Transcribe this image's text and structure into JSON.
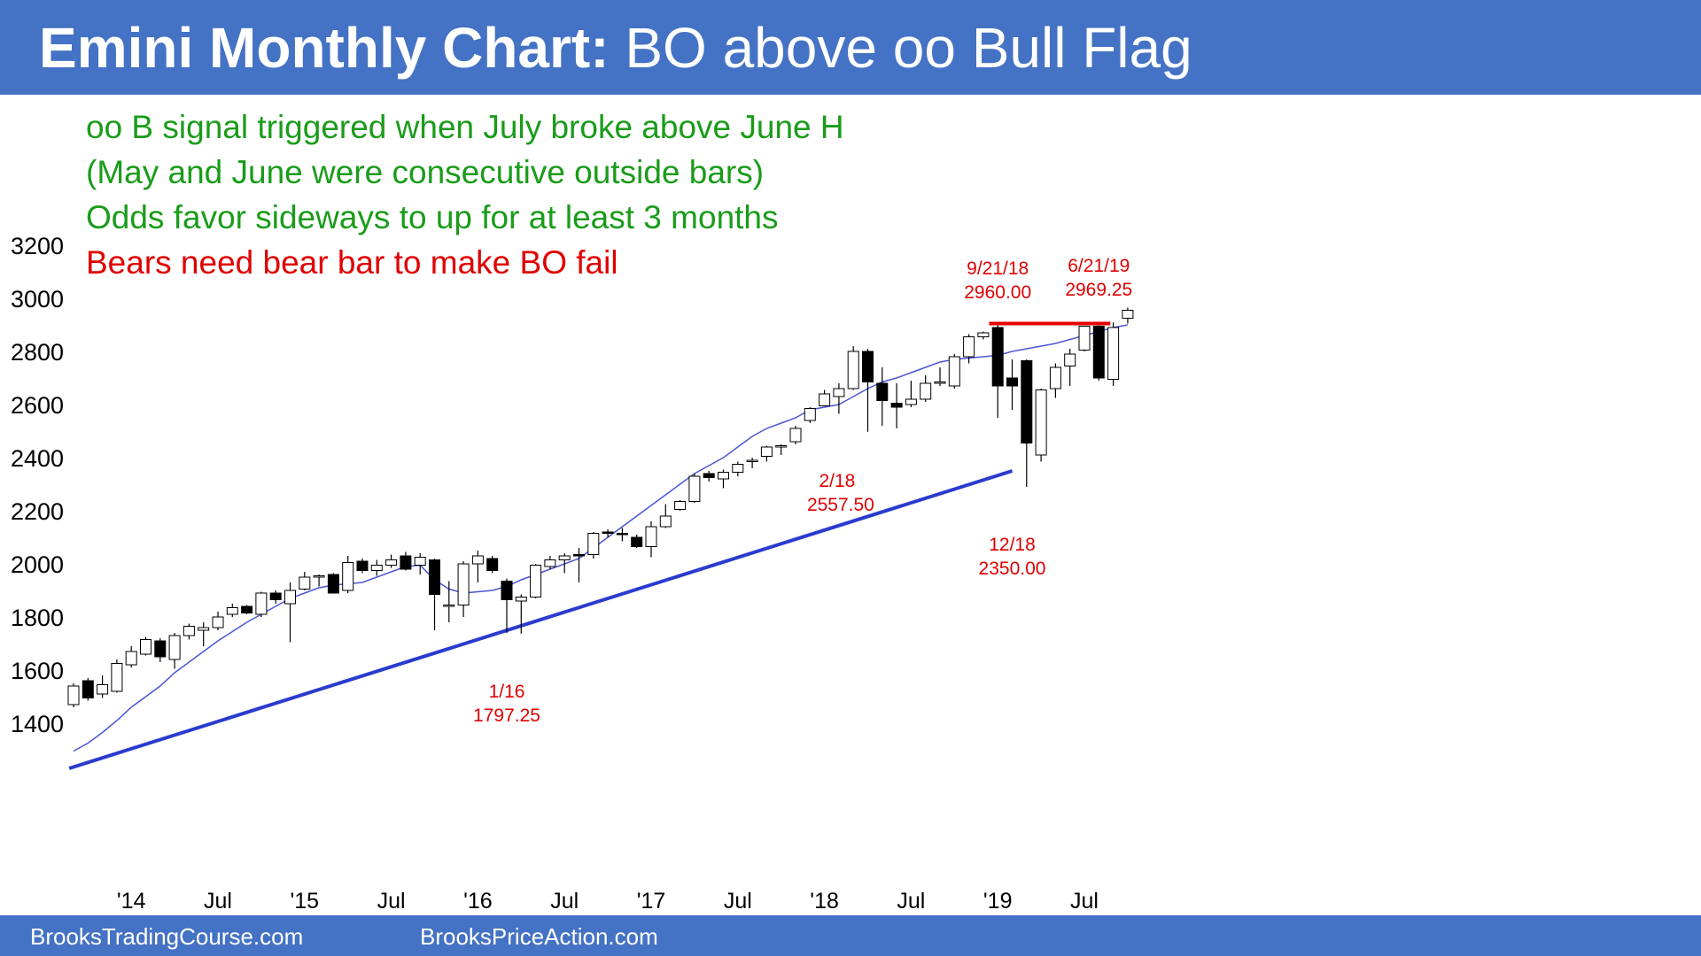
{
  "header": {
    "title_bold": "Emini Monthly Chart:",
    "title_rest": "BO above oo Bull Flag",
    "background": "#4472c4"
  },
  "notes": [
    {
      "text": "oo B signal triggered when July broke above June H",
      "color": "#1a9c1a"
    },
    {
      "text": "(May and June were consecutive outside bars)",
      "color": "#1a9c1a"
    },
    {
      "text": "Odds favor sideways to up for at least 3 months",
      "color": "#1a9c1a"
    },
    {
      "text": "Bears need bear bar to make BO fail",
      "color": "#e00000"
    }
  ],
  "footer": {
    "left": "BrooksTradingCourse.com",
    "right": "BrooksPriceAction.com"
  },
  "chart_data": {
    "type": "candlestick",
    "title": "Emini Monthly Chart: BO above oo Bull Flag",
    "ylim": [
      1300,
      3200
    ],
    "yticks": [
      1400,
      1600,
      1800,
      2000,
      2200,
      2400,
      2600,
      2800,
      3000,
      3200
    ],
    "xticks": [
      {
        "label": "'14",
        "index": 4
      },
      {
        "label": "Jul",
        "index": 10
      },
      {
        "label": "'15",
        "index": 16
      },
      {
        "label": "Jul",
        "index": 22
      },
      {
        "label": "'16",
        "index": 28
      },
      {
        "label": "Jul",
        "index": 34
      },
      {
        "label": "'17",
        "index": 40
      },
      {
        "label": "Jul",
        "index": 46
      },
      {
        "label": "'18",
        "index": 52
      },
      {
        "label": "Jul",
        "index": 58
      },
      {
        "label": "'19",
        "index": 64
      },
      {
        "label": "Jul",
        "index": 70
      }
    ],
    "candles": [
      {
        "o": 1530,
        "h": 1610,
        "l": 1520,
        "c": 1600
      },
      {
        "o": 1620,
        "h": 1630,
        "l": 1545,
        "c": 1555
      },
      {
        "o": 1570,
        "h": 1640,
        "l": 1555,
        "c": 1605
      },
      {
        "o": 1580,
        "h": 1700,
        "l": 1575,
        "c": 1685
      },
      {
        "o": 1680,
        "h": 1750,
        "l": 1670,
        "c": 1730
      },
      {
        "o": 1720,
        "h": 1785,
        "l": 1715,
        "c": 1775
      },
      {
        "o": 1770,
        "h": 1780,
        "l": 1690,
        "c": 1710
      },
      {
        "o": 1700,
        "h": 1800,
        "l": 1665,
        "c": 1790
      },
      {
        "o": 1790,
        "h": 1835,
        "l": 1775,
        "c": 1825
      },
      {
        "o": 1810,
        "h": 1840,
        "l": 1750,
        "c": 1820
      },
      {
        "o": 1820,
        "h": 1880,
        "l": 1810,
        "c": 1860
      },
      {
        "o": 1870,
        "h": 1910,
        "l": 1860,
        "c": 1895
      },
      {
        "o": 1900,
        "h": 1905,
        "l": 1870,
        "c": 1875
      },
      {
        "o": 1870,
        "h": 1955,
        "l": 1860,
        "c": 1950
      },
      {
        "o": 1950,
        "h": 1960,
        "l": 1910,
        "c": 1925
      },
      {
        "o": 1910,
        "h": 1990,
        "l": 1765,
        "c": 1960
      },
      {
        "o": 1965,
        "h": 2030,
        "l": 1960,
        "c": 2010
      },
      {
        "o": 2010,
        "h": 2020,
        "l": 1975,
        "c": 2015
      },
      {
        "o": 2020,
        "h": 2025,
        "l": 1950,
        "c": 1950
      },
      {
        "o": 1960,
        "h": 2090,
        "l": 1950,
        "c": 2065
      },
      {
        "o": 2070,
        "h": 2080,
        "l": 2025,
        "c": 2035
      },
      {
        "o": 2035,
        "h": 2075,
        "l": 2015,
        "c": 2055
      },
      {
        "o": 2055,
        "h": 2095,
        "l": 2045,
        "c": 2075
      },
      {
        "o": 2090,
        "h": 2105,
        "l": 2035,
        "c": 2040
      },
      {
        "o": 2055,
        "h": 2100,
        "l": 2020,
        "c": 2085
      },
      {
        "o": 2075,
        "h": 2080,
        "l": 1810,
        "c": 1945
      },
      {
        "o": 1900,
        "h": 1995,
        "l": 1840,
        "c": 1905
      },
      {
        "o": 1905,
        "h": 2070,
        "l": 1860,
        "c": 2060
      },
      {
        "o": 2060,
        "h": 2110,
        "l": 1990,
        "c": 2090
      },
      {
        "o": 2080,
        "h": 2090,
        "l": 2025,
        "c": 2035
      },
      {
        "o": 1995,
        "h": 2005,
        "l": 1800,
        "c": 1925
      },
      {
        "o": 1920,
        "h": 1945,
        "l": 1797.25,
        "c": 1935
      },
      {
        "o": 1935,
        "h": 2060,
        "l": 1930,
        "c": 2055
      },
      {
        "o": 2050,
        "h": 2090,
        "l": 2040,
        "c": 2075
      },
      {
        "o": 2075,
        "h": 2100,
        "l": 2025,
        "c": 2090
      },
      {
        "o": 2095,
        "h": 2120,
        "l": 1990,
        "c": 2090
      },
      {
        "o": 2095,
        "h": 2180,
        "l": 2080,
        "c": 2175
      },
      {
        "o": 2180,
        "h": 2190,
        "l": 2160,
        "c": 2175
      },
      {
        "o": 2175,
        "h": 2195,
        "l": 2145,
        "c": 2170
      },
      {
        "o": 2160,
        "h": 2170,
        "l": 2120,
        "c": 2125
      },
      {
        "o": 2125,
        "h": 2220,
        "l": 2085,
        "c": 2200
      },
      {
        "o": 2200,
        "h": 2285,
        "l": 2195,
        "c": 2240
      },
      {
        "o": 2265,
        "h": 2300,
        "l": 2260,
        "c": 2295
      },
      {
        "o": 2295,
        "h": 2400,
        "l": 2290,
        "c": 2390
      },
      {
        "o": 2400,
        "h": 2410,
        "l": 2370,
        "c": 2385
      },
      {
        "o": 2380,
        "h": 2415,
        "l": 2345,
        "c": 2405
      },
      {
        "o": 2405,
        "h": 2445,
        "l": 2390,
        "c": 2435
      },
      {
        "o": 2445,
        "h": 2460,
        "l": 2420,
        "c": 2450
      },
      {
        "o": 2465,
        "h": 2505,
        "l": 2445,
        "c": 2500
      },
      {
        "o": 2505,
        "h": 2510,
        "l": 2470,
        "c": 2505
      },
      {
        "o": 2520,
        "h": 2580,
        "l": 2510,
        "c": 2570
      },
      {
        "o": 2600,
        "h": 2650,
        "l": 2590,
        "c": 2645
      },
      {
        "o": 2655,
        "h": 2715,
        "l": 2655,
        "c": 2700
      },
      {
        "o": 2690,
        "h": 2740,
        "l": 2625,
        "c": 2720
      },
      {
        "o": 2720,
        "h": 2880,
        "l": 2715,
        "c": 2860
      },
      {
        "o": 2860,
        "h": 2870,
        "l": 2557.5,
        "c": 2745
      },
      {
        "o": 2740,
        "h": 2800,
        "l": 2580,
        "c": 2675
      },
      {
        "o": 2665,
        "h": 2740,
        "l": 2570,
        "c": 2650
      },
      {
        "o": 2660,
        "h": 2750,
        "l": 2650,
        "c": 2680
      },
      {
        "o": 2680,
        "h": 2770,
        "l": 2670,
        "c": 2740
      },
      {
        "o": 2740,
        "h": 2800,
        "l": 2730,
        "c": 2745
      },
      {
        "o": 2730,
        "h": 2850,
        "l": 2720,
        "c": 2840
      },
      {
        "o": 2840,
        "h": 2925,
        "l": 2815,
        "c": 2915
      },
      {
        "o": 2915,
        "h": 2935,
        "l": 2905,
        "c": 2930
      },
      {
        "o": 2950,
        "h": 2960,
        "l": 2610,
        "c": 2730
      },
      {
        "o": 2760,
        "h": 2830,
        "l": 2640,
        "c": 2730
      },
      {
        "o": 2825,
        "h": 2830,
        "l": 2350,
        "c": 2515
      },
      {
        "o": 2470,
        "h": 2720,
        "l": 2445,
        "c": 2715
      },
      {
        "o": 2720,
        "h": 2815,
        "l": 2685,
        "c": 2800
      },
      {
        "o": 2805,
        "h": 2870,
        "l": 2730,
        "c": 2850
      },
      {
        "o": 2865,
        "h": 2955,
        "l": 2860,
        "c": 2955
      },
      {
        "o": 2955,
        "h": 2965,
        "l": 2750,
        "c": 2760
      },
      {
        "o": 2755,
        "h": 2969.25,
        "l": 2730,
        "c": 2950
      },
      {
        "o": 2985,
        "h": 3025,
        "l": 2965,
        "c": 3015
      }
    ],
    "ma20": [
      1355,
      1385,
      1425,
      1470,
      1520,
      1560,
      1600,
      1650,
      1690,
      1730,
      1770,
      1805,
      1840,
      1870,
      1900,
      1930,
      1950,
      1970,
      1980,
      1985,
      1990,
      2010,
      2030,
      2050,
      2055,
      2000,
      1965,
      1950,
      1955,
      1960,
      1975,
      2000,
      2020,
      2040,
      2060,
      2080,
      2120,
      2160,
      2200,
      2240,
      2280,
      2320,
      2360,
      2400,
      2430,
      2460,
      2500,
      2540,
      2570,
      2590,
      2610,
      2640,
      2650,
      2660,
      2690,
      2720,
      2745,
      2760,
      2780,
      2800,
      2820,
      2830,
      2835,
      2840,
      2845,
      2860,
      2870,
      2880,
      2890,
      2905,
      2920,
      2935,
      2950,
      2960
    ],
    "trendline": {
      "from": {
        "index": -0.3,
        "value": 1290
      },
      "to": {
        "index": 65,
        "value": 2410
      }
    },
    "resistance_line": {
      "from_index": 63.4,
      "to_index": 71.8,
      "value": 2965
    },
    "annotations": [
      {
        "lines": [
          "9/21/18",
          "2960.00"
        ],
        "index": 64,
        "value": 2960,
        "position": "above"
      },
      {
        "lines": [
          "6/21/19",
          "2969.25"
        ],
        "index": 71,
        "value": 2969.25,
        "position": "above"
      },
      {
        "lines": [
          "2/18"
        ],
        "index": 53,
        "value": 2557.5,
        "position": "below-left"
      },
      {
        "lines": [
          "2557.50"
        ],
        "index": 53,
        "value": 2557.5,
        "position": "below-right"
      },
      {
        "lines": [
          "12/18",
          "2350.00"
        ],
        "index": 65,
        "value": 2350,
        "position": "below"
      },
      {
        "lines": [
          "1/16",
          "1797.25"
        ],
        "index": 30,
        "value": 1797.25,
        "position": "below"
      }
    ],
    "colors": {
      "bull": "#ffffff",
      "bear": "#000000",
      "ma": "#4a56d4",
      "trend": "#2a3bd0",
      "resistance": "#e60000",
      "label": "#e00000"
    }
  }
}
